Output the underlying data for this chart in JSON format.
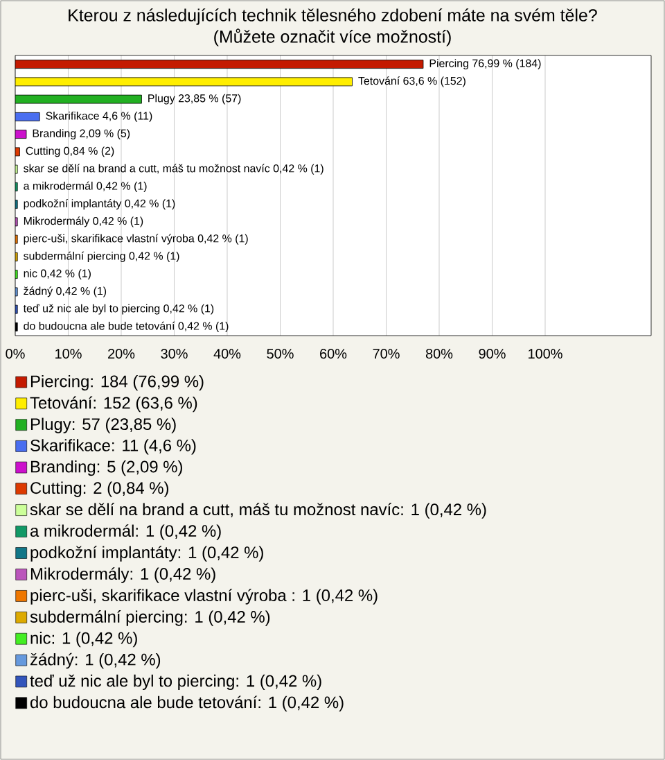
{
  "chart_data": {
    "type": "bar",
    "orientation": "horizontal",
    "title": "Kterou z následujících technik tělesného zdobení máte na svém těle?",
    "subtitle": "(Můžete označit více možností)",
    "categories": [
      null,
      null,
      null,
      null,
      null,
      null,
      null,
      null,
      null,
      null,
      null,
      null,
      null,
      null,
      null,
      null
    ],
    "series": [
      {
        "name": "Piercing: 184 (76,99 %)",
        "color": "#c41a00",
        "values": [
          76.99,
          null,
          null,
          null,
          null,
          null,
          null,
          null,
          null,
          null,
          null,
          null,
          null,
          null,
          null,
          null
        ],
        "value_labels": [
          "Piercing 76,99 % (184)",
          null,
          null,
          null,
          null,
          null,
          null,
          null,
          null,
          null,
          null,
          null,
          null,
          null,
          null,
          null
        ]
      },
      {
        "name": "Tetování: 152 (63,6 %)",
        "color": "#ffee00",
        "values": [
          null,
          63.6,
          null,
          null,
          null,
          null,
          null,
          null,
          null,
          null,
          null,
          null,
          null,
          null,
          null,
          null
        ],
        "value_labels": [
          null,
          "Tetování 63,6 % (152)",
          null,
          null,
          null,
          null,
          null,
          null,
          null,
          null,
          null,
          null,
          null,
          null,
          null,
          null
        ]
      },
      {
        "name": "Plugy: 57 (23,85 %)",
        "color": "#22b022",
        "values": [
          null,
          null,
          23.85,
          null,
          null,
          null,
          null,
          null,
          null,
          null,
          null,
          null,
          null,
          null,
          null,
          null
        ],
        "value_labels": [
          null,
          null,
          "Plugy 23,85 % (57)",
          null,
          null,
          null,
          null,
          null,
          null,
          null,
          null,
          null,
          null,
          null,
          null,
          null
        ]
      },
      {
        "name": "Skarifikace: 11 (4,6 %)",
        "color": "#4a6ef0",
        "values": [
          null,
          null,
          null,
          4.6,
          null,
          null,
          null,
          null,
          null,
          null,
          null,
          null,
          null,
          null,
          null,
          null
        ],
        "value_labels": [
          null,
          null,
          null,
          "Skarifikace 4,6 % (11)",
          null,
          null,
          null,
          null,
          null,
          null,
          null,
          null,
          null,
          null,
          null,
          null
        ]
      },
      {
        "name": "Branding: 5 (2,09 %)",
        "color": "#cc11cc",
        "values": [
          null,
          null,
          null,
          null,
          2.09,
          null,
          null,
          null,
          null,
          null,
          null,
          null,
          null,
          null,
          null,
          null
        ],
        "value_labels": [
          null,
          null,
          null,
          null,
          "Branding 2,09 % (5)",
          null,
          null,
          null,
          null,
          null,
          null,
          null,
          null,
          null,
          null,
          null
        ]
      },
      {
        "name": "Cutting: 2 (0,84 %)",
        "color": "#dd3a00",
        "values": [
          null,
          null,
          null,
          null,
          null,
          0.84,
          null,
          null,
          null,
          null,
          null,
          null,
          null,
          null,
          null,
          null
        ],
        "value_labels": [
          null,
          null,
          null,
          null,
          null,
          "Cutting 0,84 % (2)",
          null,
          null,
          null,
          null,
          null,
          null,
          null,
          null,
          null,
          null
        ]
      },
      {
        "name": "skar se dělí na brand a cutt, máš tu možnost navíc: 1 (0,42 %)",
        "color": "#ccff99",
        "values": [
          null,
          null,
          null,
          null,
          null,
          null,
          0.42,
          null,
          null,
          null,
          null,
          null,
          null,
          null,
          null,
          null
        ],
        "value_labels": [
          null,
          null,
          null,
          null,
          null,
          null,
          "skar se dělí na brand a cutt, máš tu možnost navíc 0,42 % (1)",
          null,
          null,
          null,
          null,
          null,
          null,
          null,
          null,
          null
        ]
      },
      {
        "name": "a mikrodermál: 1 (0,42 %)",
        "color": "#119966",
        "values": [
          null,
          null,
          null,
          null,
          null,
          null,
          null,
          0.42,
          null,
          null,
          null,
          null,
          null,
          null,
          null,
          null
        ],
        "value_labels": [
          null,
          null,
          null,
          null,
          null,
          null,
          null,
          "a mikrodermál 0,42 % (1)",
          null,
          null,
          null,
          null,
          null,
          null,
          null,
          null
        ]
      },
      {
        "name": "podkožní implantáty: 1 (0,42 %)",
        "color": "#117788",
        "values": [
          null,
          null,
          null,
          null,
          null,
          null,
          null,
          null,
          0.42,
          null,
          null,
          null,
          null,
          null,
          null,
          null
        ],
        "value_labels": [
          null,
          null,
          null,
          null,
          null,
          null,
          null,
          null,
          "podkožní implantáty 0,42 % (1)",
          null,
          null,
          null,
          null,
          null,
          null,
          null
        ]
      },
      {
        "name": "Mikrodermály: 1 (0,42 %)",
        "color": "#bb55bb",
        "values": [
          null,
          null,
          null,
          null,
          null,
          null,
          null,
          null,
          null,
          0.42,
          null,
          null,
          null,
          null,
          null,
          null
        ],
        "value_labels": [
          null,
          null,
          null,
          null,
          null,
          null,
          null,
          null,
          null,
          "Mikrodermály 0,42 % (1)",
          null,
          null,
          null,
          null,
          null,
          null
        ]
      },
      {
        "name": "pierc-uši, skarifikace vlastní výroba : 1 (0,42 %)",
        "color": "#ee7700",
        "values": [
          null,
          null,
          null,
          null,
          null,
          null,
          null,
          null,
          null,
          null,
          0.42,
          null,
          null,
          null,
          null,
          null
        ],
        "value_labels": [
          null,
          null,
          null,
          null,
          null,
          null,
          null,
          null,
          null,
          null,
          "pierc-uši, skarifikace vlastní výroba  0,42 % (1)",
          null,
          null,
          null,
          null,
          null
        ]
      },
      {
        "name": "subdermální piercing: 1 (0,42 %)",
        "color": "#ddaa00",
        "values": [
          null,
          null,
          null,
          null,
          null,
          null,
          null,
          null,
          null,
          null,
          null,
          0.42,
          null,
          null,
          null,
          null
        ],
        "value_labels": [
          null,
          null,
          null,
          null,
          null,
          null,
          null,
          null,
          null,
          null,
          null,
          "subdermální piercing 0,42 % (1)",
          null,
          null,
          null,
          null
        ]
      },
      {
        "name": "nic: 1 (0,42 %)",
        "color": "#44ee22",
        "values": [
          null,
          null,
          null,
          null,
          null,
          null,
          null,
          null,
          null,
          null,
          null,
          null,
          0.42,
          null,
          null,
          null
        ],
        "value_labels": [
          null,
          null,
          null,
          null,
          null,
          null,
          null,
          null,
          null,
          null,
          null,
          null,
          "nic 0,42 % (1)",
          null,
          null,
          null
        ]
      },
      {
        "name": "žádný: 1 (0,42 %)",
        "color": "#6699dd",
        "values": [
          null,
          null,
          null,
          null,
          null,
          null,
          null,
          null,
          null,
          null,
          null,
          null,
          null,
          0.42,
          null,
          null
        ],
        "value_labels": [
          null,
          null,
          null,
          null,
          null,
          null,
          null,
          null,
          null,
          null,
          null,
          null,
          null,
          "žádný 0,42 % (1)",
          null,
          null
        ]
      },
      {
        "name": "teď už nic ale byl to piercing: 1 (0,42 %)",
        "color": "#3355bb",
        "values": [
          null,
          null,
          null,
          null,
          null,
          null,
          null,
          null,
          null,
          null,
          null,
          null,
          null,
          null,
          0.42,
          null
        ],
        "value_labels": [
          null,
          null,
          null,
          null,
          null,
          null,
          null,
          null,
          null,
          null,
          null,
          null,
          null,
          null,
          "teď už nic ale byl to piercing 0,42 % (1)",
          null
        ]
      },
      {
        "name": "do budoucna ale bude tetování: 1 (0,42 %)",
        "color": "#000000",
        "values": [
          null,
          null,
          null,
          null,
          null,
          null,
          null,
          null,
          null,
          null,
          null,
          null,
          null,
          null,
          null,
          0.42
        ],
        "value_labels": [
          null,
          null,
          null,
          null,
          null,
          null,
          null,
          null,
          null,
          null,
          null,
          null,
          null,
          null,
          null,
          "do budoucna ale bude tetování 0,42 % (1)"
        ]
      }
    ],
    "xlim": [
      0,
      120
    ],
    "xticks": [
      {
        "value": 0,
        "label": "0%"
      },
      {
        "value": 10,
        "label": "10%"
      },
      {
        "value": 20,
        "label": "20%"
      },
      {
        "value": 30,
        "label": "30%"
      },
      {
        "value": 40,
        "label": "40%"
      },
      {
        "value": 50,
        "label": "50%"
      },
      {
        "value": 60,
        "label": "60%"
      },
      {
        "value": 70,
        "label": "70%"
      },
      {
        "value": 80,
        "label": "80%"
      },
      {
        "value": 90,
        "label": "90%"
      },
      {
        "value": 100,
        "label": "100%"
      }
    ],
    "grid": "x",
    "legend": "bottom"
  }
}
